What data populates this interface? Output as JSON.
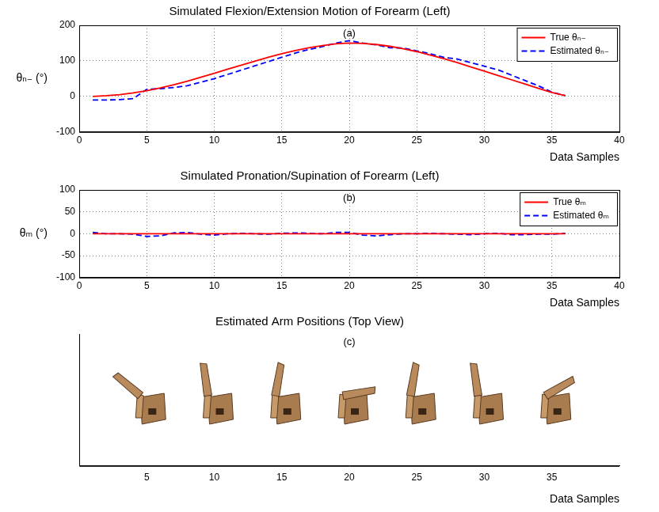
{
  "chart_data": [
    {
      "type": "line",
      "title": "Simulated Flexion/Extension Motion of Forearm (Left)",
      "annotation": "(a)",
      "x_label": "Data Samples",
      "y_label": "θₙ₋ (°)",
      "x": [
        1,
        2,
        3,
        4,
        5,
        6,
        7,
        8,
        9,
        10,
        11,
        12,
        13,
        14,
        15,
        16,
        17,
        18,
        19,
        20,
        21,
        22,
        23,
        24,
        25,
        26,
        27,
        28,
        29,
        30,
        31,
        32,
        33,
        34,
        35,
        36
      ],
      "series": [
        {
          "name": "True θₙ₋",
          "color": "#ff0000",
          "line_style": "solid",
          "values": [
            0,
            2,
            5,
            10,
            16,
            24,
            33,
            43,
            54,
            65,
            77,
            88,
            99,
            110,
            120,
            129,
            137,
            143,
            148,
            150,
            149,
            146,
            141,
            134,
            126,
            116,
            106,
            95,
            83,
            71,
            59,
            47,
            35,
            23,
            11,
            2
          ]
        },
        {
          "name": "Estimated θₙ₋",
          "color": "#0000ff",
          "line_style": "dashed",
          "values": [
            -10,
            -10,
            -9,
            -6,
            20,
            22,
            25,
            30,
            40,
            50,
            62,
            74,
            86,
            98,
            110,
            122,
            132,
            140,
            150,
            157,
            150,
            145,
            137,
            136,
            128,
            120,
            110,
            105,
            95,
            85,
            75,
            60,
            45,
            30,
            12,
            2
          ]
        }
      ],
      "xlim": [
        0,
        40
      ],
      "xticks": [
        0,
        5,
        10,
        15,
        20,
        25,
        30,
        35,
        40
      ],
      "ylim": [
        -100,
        200
      ],
      "yticks": [
        -100,
        0,
        100,
        200
      ],
      "grid": true,
      "legend": "upper right"
    },
    {
      "type": "line",
      "title": "Simulated Pronation/Supination of Forearm (Left)",
      "annotation": "(b)",
      "x_label": "Data Samples",
      "y_label": "θₘ (°)",
      "x": [
        1,
        2,
        3,
        4,
        5,
        6,
        7,
        8,
        9,
        10,
        11,
        12,
        13,
        14,
        15,
        16,
        17,
        18,
        19,
        20,
        21,
        22,
        23,
        24,
        25,
        26,
        27,
        28,
        29,
        30,
        31,
        32,
        33,
        34,
        35,
        36
      ],
      "series": [
        {
          "name": "True θₘ",
          "color": "#ff0000",
          "line_style": "solid",
          "values": [
            0,
            0,
            0,
            0,
            0,
            0,
            0,
            0,
            0,
            0,
            0,
            0,
            0,
            0,
            0,
            0,
            0,
            0,
            0,
            0,
            0,
            0,
            0,
            0,
            0,
            0,
            0,
            0,
            0,
            0,
            0,
            0,
            0,
            0,
            0,
            0
          ]
        },
        {
          "name": "Estimated θₘ",
          "color": "#0000ff",
          "line_style": "dashed",
          "values": [
            3,
            0,
            0,
            -1,
            -6,
            -5,
            2,
            3,
            -1,
            -3,
            0,
            1,
            0,
            -1,
            1,
            2,
            1,
            0,
            3,
            3,
            -3,
            -5,
            -2,
            0,
            0,
            1,
            0,
            -1,
            -2,
            0,
            1,
            -2,
            -2,
            -1,
            -1,
            1
          ]
        }
      ],
      "xlim": [
        0,
        40
      ],
      "xticks": [
        0,
        5,
        10,
        15,
        20,
        25,
        30,
        35,
        40
      ],
      "ylim": [
        -100,
        100
      ],
      "yticks": [
        -100,
        -50,
        0,
        50,
        100
      ],
      "grid": true,
      "legend": "upper right"
    },
    {
      "type": "pose",
      "title": "Estimated Arm Positions (Top View)",
      "annotation": "(c)",
      "x_label": "Data Samples",
      "x": [
        5,
        10,
        15,
        20,
        25,
        30,
        35
      ],
      "xlim": [
        0,
        40
      ],
      "xticks": [
        5,
        10,
        15,
        20,
        25,
        30,
        35
      ],
      "tick_labels": "x",
      "grid": false
    }
  ]
}
